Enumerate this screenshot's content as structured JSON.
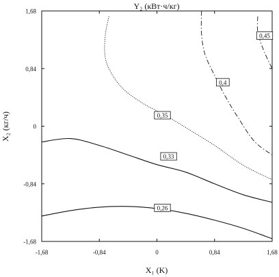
{
  "chart_data": {
    "type": "contour",
    "title": "Y₂ (кВт·ч/кг)",
    "xlabel": "X₁ (K)",
    "ylabel": "X₂ (кг/ч)",
    "xlim": [
      -1.68,
      1.68
    ],
    "ylim": [
      -1.68,
      1.68
    ],
    "xticks": [
      "-1,68",
      "-0,84",
      "0",
      "0,84",
      "1,68"
    ],
    "yticks": [
      "1,68",
      "0,84",
      "0",
      "-0,84",
      "-1,68"
    ],
    "xtick_values": [
      -1.68,
      -0.84,
      0,
      0.84,
      1.68
    ],
    "ytick_values": [
      1.68,
      0.84,
      0,
      -0.84,
      -1.68
    ],
    "grid": false,
    "contours": [
      {
        "level": 0.26,
        "label": "0,26",
        "style": "solid",
        "points": [
          [
            -1.68,
            -1.31
          ],
          [
            -1.26,
            -1.23
          ],
          [
            -0.84,
            -1.18
          ],
          [
            -0.42,
            -1.17
          ],
          [
            0,
            -1.2
          ],
          [
            0.42,
            -1.27
          ],
          [
            0.84,
            -1.37
          ],
          [
            1.26,
            -1.49
          ],
          [
            1.68,
            -1.64
          ]
        ],
        "label_at": [
          0.08,
          -1.19
        ]
      },
      {
        "level": 0.33,
        "label": "0,33",
        "style": "solid",
        "points": [
          [
            -1.68,
            -0.23
          ],
          [
            -1.26,
            -0.18
          ],
          [
            -0.84,
            -0.28
          ],
          [
            -0.42,
            -0.42
          ],
          [
            0,
            -0.56
          ],
          [
            0.42,
            -0.67
          ],
          [
            0.84,
            -0.84
          ],
          [
            1.26,
            -1.0
          ],
          [
            1.68,
            -1.11
          ]
        ],
        "label_at": [
          0.17,
          -0.44
        ]
      },
      {
        "level": 0.35,
        "label": "0,35",
        "style": "dotted",
        "points": [
          [
            -0.7,
            1.6
          ],
          [
            -0.75,
            1.35
          ],
          [
            -0.76,
            1.05
          ],
          [
            -0.69,
            0.82
          ],
          [
            -0.5,
            0.55
          ],
          [
            -0.2,
            0.33
          ],
          [
            0.12,
            0.16
          ],
          [
            0.42,
            -0.02
          ],
          [
            0.84,
            -0.28
          ],
          [
            1.26,
            -0.57
          ],
          [
            1.68,
            -0.78
          ]
        ],
        "label_at": [
          0.08,
          0.16
        ]
      },
      {
        "level": 0.4,
        "label": "0,4",
        "style": "dashdot",
        "points": [
          [
            0.65,
            1.68
          ],
          [
            0.65,
            1.35
          ],
          [
            0.7,
            1.05
          ],
          [
            0.84,
            0.74
          ],
          [
            1.0,
            0.43
          ],
          [
            1.18,
            0.13
          ],
          [
            1.42,
            -0.22
          ],
          [
            1.68,
            -0.42
          ]
        ],
        "label_at": [
          0.96,
          0.64
        ]
      },
      {
        "level": 0.45,
        "label": "0,45",
        "style": "dashdot",
        "points": [
          [
            1.47,
            1.6
          ],
          [
            1.47,
            1.38
          ],
          [
            1.55,
            1.12
          ],
          [
            1.68,
            0.84
          ]
        ],
        "label_at": [
          1.57,
          1.32
        ]
      }
    ]
  }
}
